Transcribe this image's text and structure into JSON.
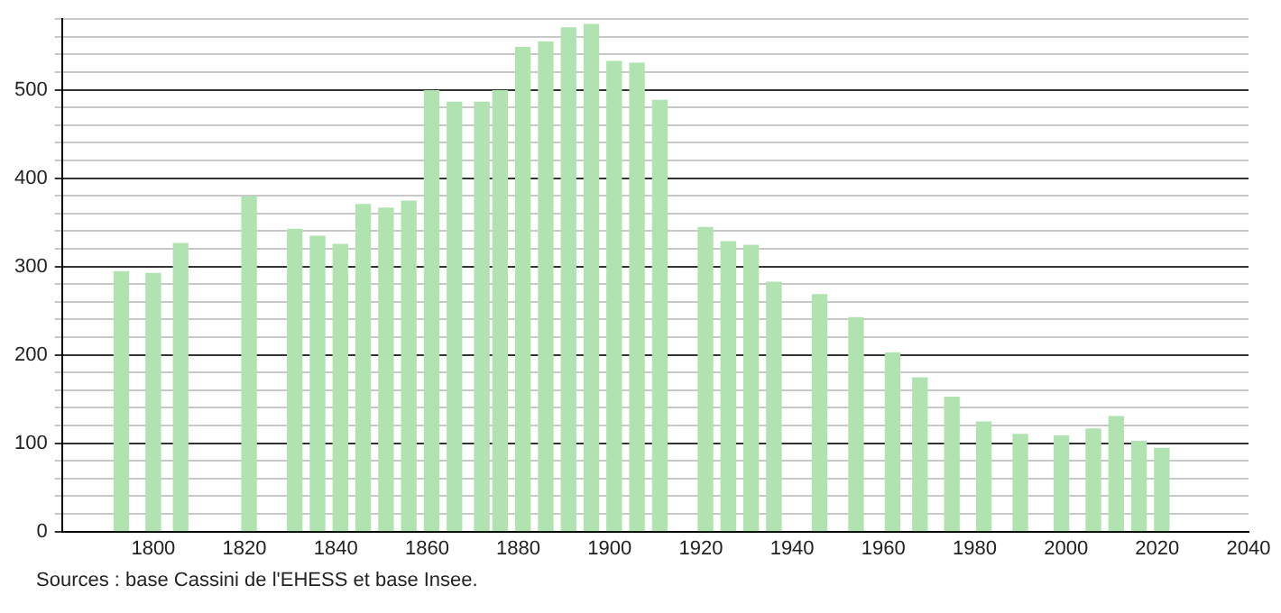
{
  "chart_data": {
    "type": "bar",
    "x": [
      1793,
      1800,
      1806,
      1821,
      1831,
      1836,
      1841,
      1846,
      1851,
      1856,
      1861,
      1866,
      1872,
      1876,
      1881,
      1886,
      1891,
      1896,
      1901,
      1906,
      1911,
      1921,
      1926,
      1931,
      1936,
      1946,
      1954,
      1962,
      1968,
      1975,
      1982,
      1990,
      1999,
      2006,
      2011,
      2016,
      2021
    ],
    "values": [
      294,
      292,
      326,
      379,
      342,
      334,
      325,
      370,
      366,
      374,
      499,
      486,
      486,
      499,
      548,
      554,
      570,
      574,
      532,
      530,
      488,
      344,
      328,
      324,
      282,
      268,
      242,
      202,
      174,
      152,
      124,
      110,
      108,
      116,
      130,
      102,
      94
    ],
    "color": "#b0e3b0",
    "xlim": [
      1780,
      2040
    ],
    "xticks": [
      1800,
      1820,
      1840,
      1860,
      1880,
      1900,
      1920,
      1940,
      1960,
      1980,
      2000,
      2020,
      2040
    ],
    "ylim": [
      0,
      580
    ],
    "yticks": [
      0,
      {
        "value": 20,
        "label": null
      },
      {
        "value": 40,
        "label": null
      },
      {
        "value": 60,
        "label": null
      },
      {
        "value": 80,
        "label": null
      },
      100,
      {
        "value": 120,
        "label": null
      },
      {
        "value": 140,
        "label": null
      },
      {
        "value": 160,
        "label": null
      },
      {
        "value": 180,
        "label": null
      },
      200,
      {
        "value": 220,
        "label": null
      },
      {
        "value": 240,
        "label": null
      },
      {
        "value": 260,
        "label": null
      },
      {
        "value": 280,
        "label": null
      },
      300,
      {
        "value": 320,
        "label": null
      },
      {
        "value": 340,
        "label": null
      },
      {
        "value": 360,
        "label": null
      },
      {
        "value": 380,
        "label": null
      },
      400,
      {
        "value": 420,
        "label": null
      },
      {
        "value": 440,
        "label": null
      },
      {
        "value": 460,
        "label": null
      },
      {
        "value": 480,
        "label": null
      },
      500,
      {
        "value": 520,
        "label": null
      },
      {
        "value": 540,
        "label": null
      },
      {
        "value": 560,
        "label": null
      },
      {
        "value": 580,
        "label": null
      }
    ],
    "grid": "y",
    "annotations": [
      "Sources : base Cassini de l'EHESS et base Insee."
    ]
  }
}
